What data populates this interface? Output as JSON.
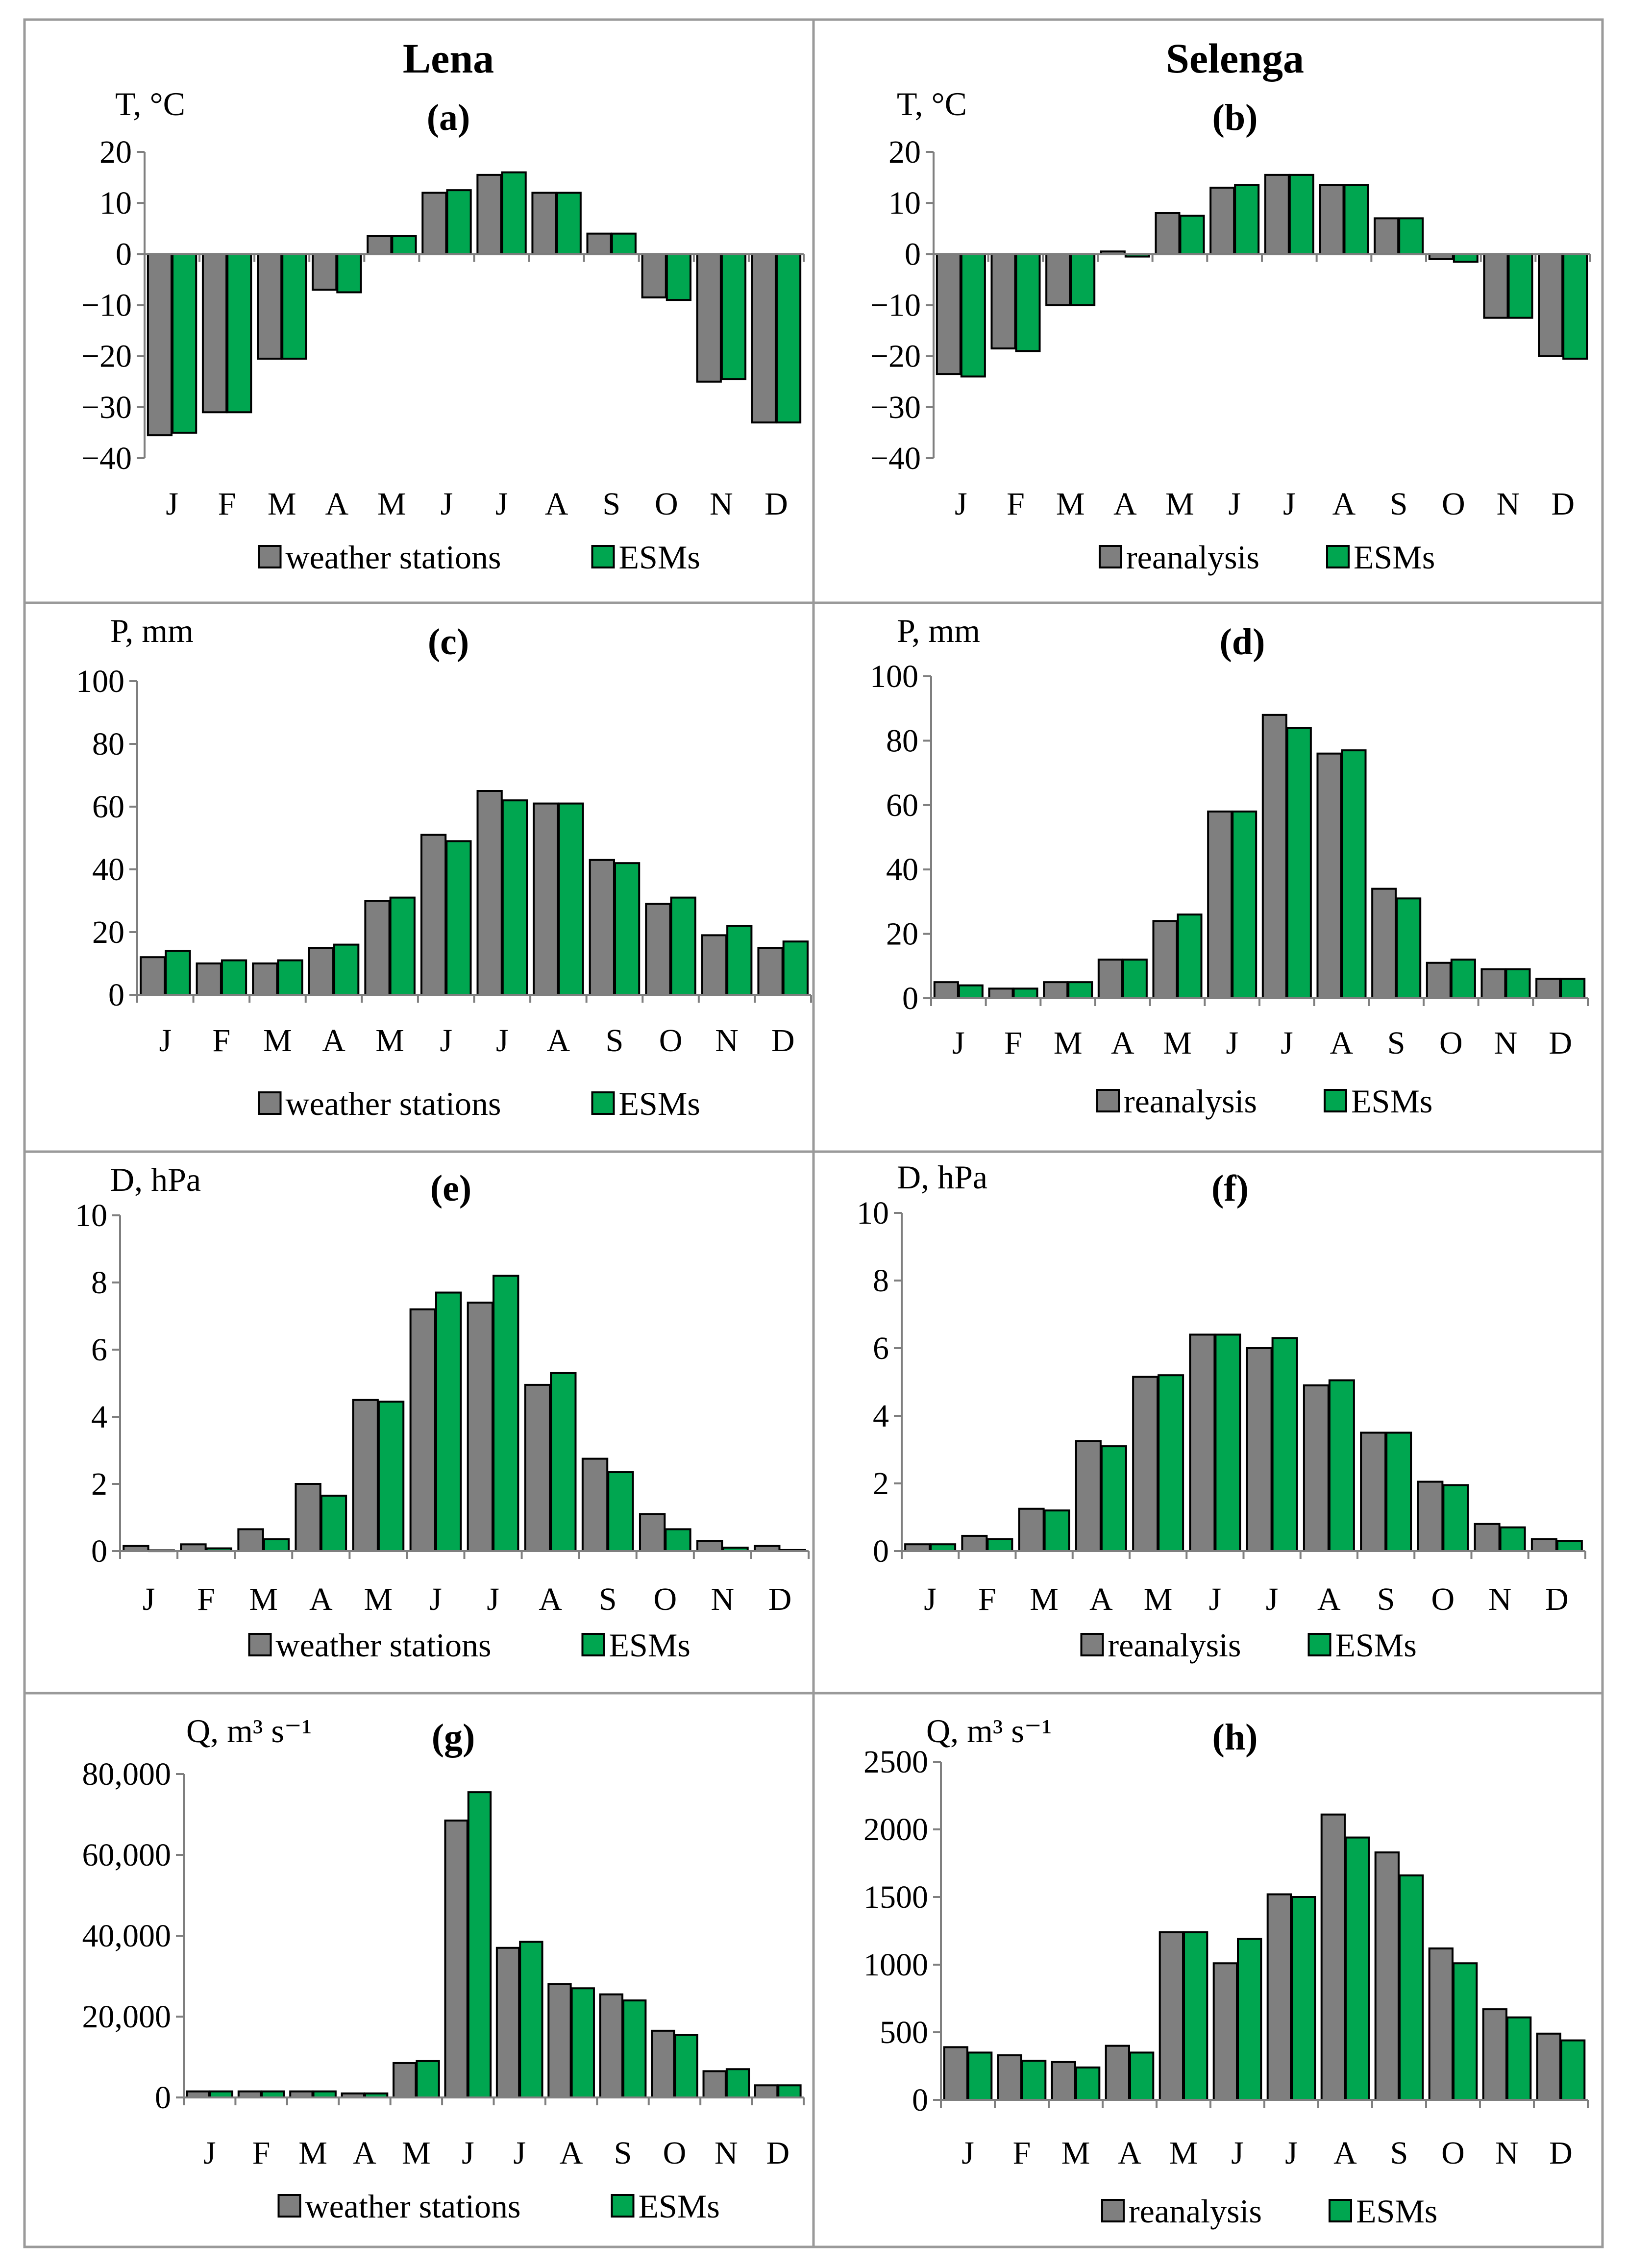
{
  "columns": [
    {
      "title": "Lena"
    },
    {
      "title": "Selenga"
    }
  ],
  "chart_data": [
    {
      "type": "bar",
      "title": "(a)",
      "ylabel": "T, °C",
      "ylim": [
        -40,
        20
      ],
      "yticks": [
        -40,
        -30,
        -20,
        -10,
        0,
        10,
        20
      ],
      "categories": [
        "J",
        "F",
        "M",
        "A",
        "M",
        "J",
        "J",
        "A",
        "S",
        "O",
        "N",
        "D"
      ],
      "series": [
        {
          "name": "weather stations",
          "color": "#7f7f7f",
          "values": [
            -35.5,
            -31,
            -20.5,
            -7,
            3.5,
            12,
            15.5,
            12,
            4,
            -8.5,
            -25,
            -33
          ]
        },
        {
          "name": "ESMs",
          "color": "#00a650",
          "values": [
            -35,
            -31,
            -20.5,
            -7.5,
            3.5,
            12.5,
            16,
            12,
            4,
            -9,
            -24.5,
            -33
          ]
        }
      ]
    },
    {
      "type": "bar",
      "title": "(b)",
      "ylabel": "T, °C",
      "ylim": [
        -40,
        20
      ],
      "yticks": [
        -40,
        -30,
        -20,
        -10,
        0,
        10,
        20
      ],
      "categories": [
        "J",
        "F",
        "M",
        "A",
        "M",
        "J",
        "J",
        "A",
        "S",
        "O",
        "N",
        "D"
      ],
      "series": [
        {
          "name": "reanalysis",
          "color": "#7f7f7f",
          "values": [
            -23.5,
            -18.5,
            -10,
            0.5,
            8,
            13,
            15.5,
            13.5,
            7,
            -1,
            -12.5,
            -20
          ]
        },
        {
          "name": "ESMs",
          "color": "#00a650",
          "values": [
            -24,
            -19,
            -10,
            -0.5,
            7.5,
            13.5,
            15.5,
            13.5,
            7,
            -1.5,
            -12.5,
            -20.5
          ]
        }
      ]
    },
    {
      "type": "bar",
      "title": "(c)",
      "ylabel": "P, mm",
      "ylim": [
        0,
        100
      ],
      "yticks": [
        0,
        20,
        40,
        60,
        80,
        100
      ],
      "categories": [
        "J",
        "F",
        "M",
        "A",
        "M",
        "J",
        "J",
        "A",
        "S",
        "O",
        "N",
        "D"
      ],
      "series": [
        {
          "name": "weather stations",
          "color": "#7f7f7f",
          "values": [
            12,
            10,
            10,
            15,
            30,
            51,
            65,
            61,
            43,
            29,
            19,
            15
          ]
        },
        {
          "name": "ESMs",
          "color": "#00a650",
          "values": [
            14,
            11,
            11,
            16,
            31,
            49,
            62,
            61,
            42,
            31,
            22,
            17
          ]
        }
      ]
    },
    {
      "type": "bar",
      "title": "(d)",
      "ylabel": "P, mm",
      "ylim": [
        0,
        100
      ],
      "yticks": [
        0,
        20,
        40,
        60,
        80,
        100
      ],
      "categories": [
        "J",
        "F",
        "M",
        "A",
        "M",
        "J",
        "J",
        "A",
        "S",
        "O",
        "N",
        "D"
      ],
      "series": [
        {
          "name": "reanalysis",
          "color": "#7f7f7f",
          "values": [
            5,
            3,
            5,
            12,
            24,
            58,
            88,
            76,
            34,
            11,
            9,
            6
          ]
        },
        {
          "name": "ESMs",
          "color": "#00a650",
          "values": [
            4,
            3,
            5,
            12,
            26,
            58,
            84,
            77,
            31,
            12,
            9,
            6
          ]
        }
      ]
    },
    {
      "type": "bar",
      "title": "(e)",
      "ylabel": "D, hPa",
      "ylim": [
        0,
        10
      ],
      "yticks": [
        0,
        2,
        4,
        6,
        8,
        10
      ],
      "categories": [
        "J",
        "F",
        "M",
        "A",
        "M",
        "J",
        "J",
        "A",
        "S",
        "O",
        "N",
        "D"
      ],
      "series": [
        {
          "name": "weather stations",
          "color": "#7f7f7f",
          "values": [
            0.15,
            0.2,
            0.65,
            2.0,
            4.5,
            7.2,
            7.4,
            4.95,
            2.75,
            1.1,
            0.3,
            0.15
          ]
        },
        {
          "name": "ESMs",
          "color": "#00a650",
          "values": [
            0.02,
            0.08,
            0.35,
            1.65,
            4.45,
            7.7,
            8.2,
            5.3,
            2.35,
            0.65,
            0.1,
            0.03
          ]
        }
      ]
    },
    {
      "type": "bar",
      "title": "(f)",
      "ylabel": "D, hPa",
      "ylim": [
        0,
        10
      ],
      "yticks": [
        0,
        2,
        4,
        6,
        8,
        10
      ],
      "categories": [
        "J",
        "F",
        "M",
        "A",
        "M",
        "J",
        "J",
        "A",
        "S",
        "O",
        "N",
        "D"
      ],
      "series": [
        {
          "name": "reanalysis",
          "color": "#7f7f7f",
          "values": [
            0.2,
            0.45,
            1.25,
            3.25,
            5.15,
            6.4,
            6.0,
            4.9,
            3.5,
            2.05,
            0.8,
            0.35
          ]
        },
        {
          "name": "ESMs",
          "color": "#00a650",
          "values": [
            0.2,
            0.35,
            1.2,
            3.1,
            5.2,
            6.4,
            6.3,
            5.05,
            3.5,
            1.95,
            0.7,
            0.3
          ]
        }
      ]
    },
    {
      "type": "bar",
      "title": "(g)",
      "ylabel": "Q, m³ s⁻¹",
      "ylim": [
        0,
        80000
      ],
      "ytick_labels": [
        "0",
        "20,000",
        "40,000",
        "60,000",
        "80,000"
      ],
      "yticks": [
        0,
        20000,
        40000,
        60000,
        80000
      ],
      "categories": [
        "J",
        "F",
        "M",
        "A",
        "M",
        "J",
        "J",
        "A",
        "S",
        "O",
        "N",
        "D"
      ],
      "series": [
        {
          "name": "weather stations",
          "color": "#7f7f7f",
          "values": [
            1500,
            1500,
            1500,
            1000,
            8500,
            68500,
            37000,
            28000,
            25500,
            16500,
            6500,
            3000
          ]
        },
        {
          "name": "ESMs",
          "color": "#00a650",
          "values": [
            1500,
            1500,
            1500,
            1000,
            9000,
            75500,
            38500,
            27000,
            24000,
            15500,
            7000,
            3000
          ]
        }
      ]
    },
    {
      "type": "bar",
      "title": "(h)",
      "ylabel": "Q, m³ s⁻¹",
      "ylim": [
        0,
        2500
      ],
      "yticks": [
        0,
        500,
        1000,
        1500,
        2000,
        2500
      ],
      "categories": [
        "J",
        "F",
        "M",
        "A",
        "M",
        "J",
        "J",
        "A",
        "S",
        "O",
        "N",
        "D"
      ],
      "series": [
        {
          "name": "reanalysis",
          "color": "#7f7f7f",
          "values": [
            390,
            330,
            280,
            400,
            1240,
            1010,
            1520,
            2110,
            1830,
            1120,
            670,
            490
          ]
        },
        {
          "name": "ESMs",
          "color": "#00a650",
          "values": [
            350,
            290,
            240,
            350,
            1240,
            1190,
            1500,
            1940,
            1660,
            1010,
            610,
            440
          ]
        }
      ]
    }
  ]
}
